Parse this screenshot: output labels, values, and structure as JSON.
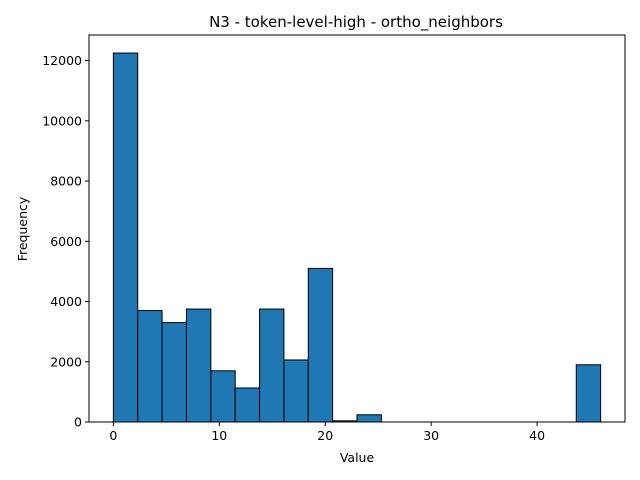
{
  "chart_data": {
    "type": "histogram",
    "title": "N3 - token-level-high - ortho_neighbors",
    "xlabel": "Value",
    "ylabel": "Frequency",
    "xlim": [
      -2.3,
      48.3
    ],
    "ylim": [
      0,
      12850
    ],
    "xticks": [
      0,
      10,
      20,
      30,
      40
    ],
    "yticks": [
      0,
      2000,
      4000,
      6000,
      8000,
      10000,
      12000
    ],
    "bin_edges": [
      0,
      2.3,
      4.6,
      6.9,
      9.2,
      11.5,
      13.8,
      16.1,
      18.4,
      20.7,
      23.0,
      25.3,
      27.6,
      29.9,
      32.2,
      34.5,
      36.8,
      39.1,
      41.4,
      43.7,
      46.0
    ],
    "values": [
      12250,
      3700,
      3300,
      3750,
      1700,
      1130,
      3750,
      2060,
      5100,
      40,
      240,
      0,
      0,
      0,
      0,
      0,
      0,
      0,
      0,
      1900
    ],
    "bar_color": "#1f77b4",
    "edge_color": "#000000",
    "grid": false,
    "legend": "none"
  }
}
